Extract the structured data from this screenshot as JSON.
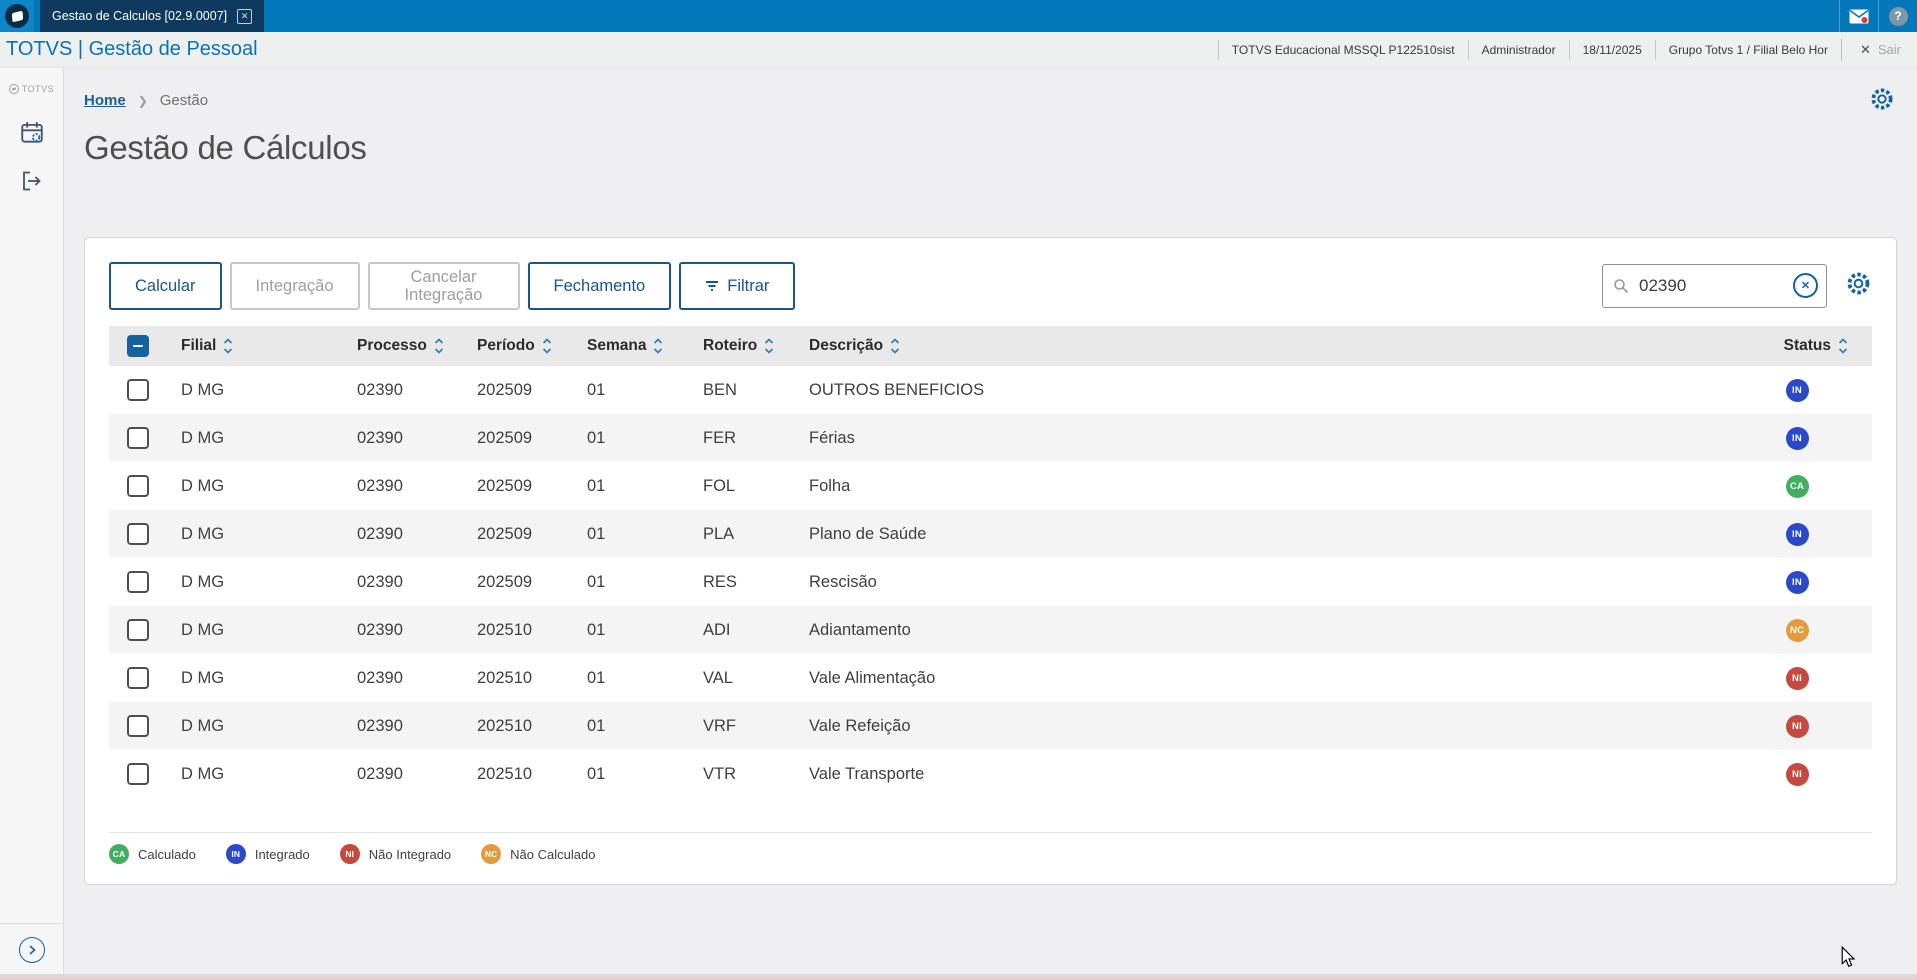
{
  "window": {
    "tab_title": "Gestao de Calculos [02.9.0007]"
  },
  "app_header": {
    "brand": "TOTVS | Gestão de Pessoal",
    "info": [
      "TOTVS Educacional MSSQL P122510sist",
      "Administrador",
      "18/11/2025",
      "Grupo Totvs 1 / Filial Belo Hor"
    ],
    "logout_label": "Sair"
  },
  "sidebar": {
    "logo_label": "TOTVS"
  },
  "breadcrumb": {
    "home": "Home",
    "current": "Gestão"
  },
  "page": {
    "title": "Gestão de Cálculos"
  },
  "toolbar": {
    "buttons": [
      {
        "id": "calcular",
        "label": "Calcular",
        "enabled": true,
        "icon": null
      },
      {
        "id": "integracao",
        "label": "Integração",
        "enabled": false,
        "icon": null
      },
      {
        "id": "cancelar-integracao",
        "label": "Cancelar Integração",
        "enabled": false,
        "icon": null
      },
      {
        "id": "fechamento",
        "label": "Fechamento",
        "enabled": true,
        "icon": null
      },
      {
        "id": "filtrar",
        "label": "Filtrar",
        "enabled": true,
        "icon": "filter-icon"
      }
    ],
    "search_value": "02390"
  },
  "table": {
    "columns": [
      {
        "key": "filial",
        "label": "Filial"
      },
      {
        "key": "processo",
        "label": "Processo"
      },
      {
        "key": "periodo",
        "label": "Período"
      },
      {
        "key": "semana",
        "label": "Semana"
      },
      {
        "key": "roteiro",
        "label": "Roteiro"
      },
      {
        "key": "descricao",
        "label": "Descrição"
      },
      {
        "key": "status",
        "label": "Status"
      }
    ],
    "rows": [
      {
        "filial": "D MG",
        "processo": "02390",
        "periodo": "202509",
        "semana": "01",
        "roteiro": "BEN",
        "descricao": "OUTROS BENEFICIOS",
        "status": "IN"
      },
      {
        "filial": "D MG",
        "processo": "02390",
        "periodo": "202509",
        "semana": "01",
        "roteiro": "FER",
        "descricao": "Férias",
        "status": "IN"
      },
      {
        "filial": "D MG",
        "processo": "02390",
        "periodo": "202509",
        "semana": "01",
        "roteiro": "FOL",
        "descricao": "Folha",
        "status": "CA"
      },
      {
        "filial": "D MG",
        "processo": "02390",
        "periodo": "202509",
        "semana": "01",
        "roteiro": "PLA",
        "descricao": "Plano de Saúde",
        "status": "IN"
      },
      {
        "filial": "D MG",
        "processo": "02390",
        "periodo": "202509",
        "semana": "01",
        "roteiro": "RES",
        "descricao": "Rescisão",
        "status": "IN"
      },
      {
        "filial": "D MG",
        "processo": "02390",
        "periodo": "202510",
        "semana": "01",
        "roteiro": "ADI",
        "descricao": "Adiantamento",
        "status": "NC"
      },
      {
        "filial": "D MG",
        "processo": "02390",
        "periodo": "202510",
        "semana": "01",
        "roteiro": "VAL",
        "descricao": "Vale Alimentação",
        "status": "NI"
      },
      {
        "filial": "D MG",
        "processo": "02390",
        "periodo": "202510",
        "semana": "01",
        "roteiro": "VRF",
        "descricao": "Vale Refeição",
        "status": "NI"
      },
      {
        "filial": "D MG",
        "processo": "02390",
        "periodo": "202510",
        "semana": "01",
        "roteiro": "VTR",
        "descricao": "Vale Transporte",
        "status": "NI"
      }
    ]
  },
  "status_colors": {
    "CA": "#45ad5f",
    "IN": "#2b49c9",
    "NI": "#c44a40",
    "NC": "#e39b3f"
  },
  "legend": [
    {
      "code": "CA",
      "label": "Calculado"
    },
    {
      "code": "IN",
      "label": "Integrado"
    },
    {
      "code": "NI",
      "label": "Não Integrado"
    },
    {
      "code": "NC",
      "label": "Não Calculado"
    }
  ]
}
